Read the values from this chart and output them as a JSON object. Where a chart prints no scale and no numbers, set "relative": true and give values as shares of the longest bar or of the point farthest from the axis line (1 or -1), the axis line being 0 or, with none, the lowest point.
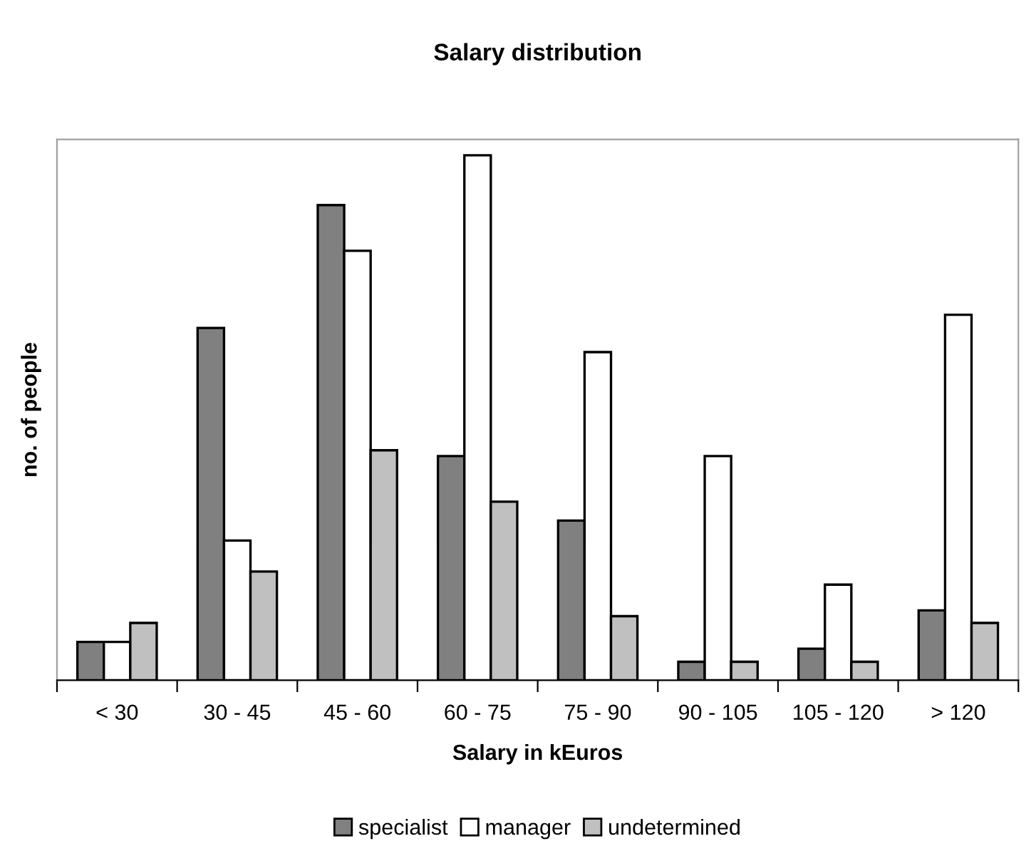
{
  "chart_data": {
    "type": "bar",
    "title": "Salary distribution",
    "xlabel": "Salary in kEuros",
    "ylabel": "no. of people",
    "relative": true,
    "legend": "bottom",
    "grid": false,
    "categories": [
      "< 30",
      "30 - 45",
      "45 - 60",
      "60 - 75",
      "75 - 90",
      "90 - 105",
      "105 - 120",
      "> 120"
    ],
    "series": [
      {
        "name": "specialist",
        "color": "#808080",
        "values": [
          0.073,
          0.671,
          0.905,
          0.427,
          0.304,
          0.035,
          0.06,
          0.133
        ]
      },
      {
        "name": "manager",
        "color": "#ffffff",
        "values": [
          0.073,
          0.266,
          0.818,
          1,
          0.625,
          0.427,
          0.182,
          0.696
        ]
      },
      {
        "name": "undetermined",
        "color": "#c0c0c0",
        "values": [
          0.109,
          0.207,
          0.438,
          0.34,
          0.122,
          0.035,
          0.035,
          0.109
        ]
      }
    ]
  }
}
